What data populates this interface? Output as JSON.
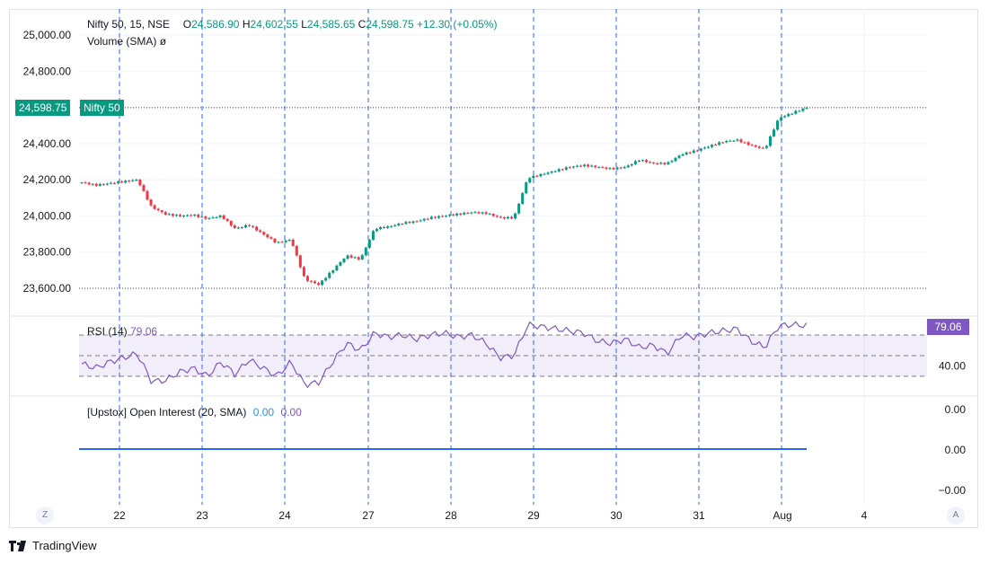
{
  "brand": {
    "name": "TradingView",
    "icon": "tradingview-logo-icon"
  },
  "price_legend": {
    "symbol": "Nifty 50, 15, NSE",
    "o_label": "O",
    "o_value": "24,586.90",
    "h_label": "H",
    "h_value": "24,602.55",
    "l_label": "L",
    "l_value": "24,585.65",
    "c_label": "C",
    "c_value": "24,598.75",
    "change": "+12.30 (+0.05%)"
  },
  "volume_legend": {
    "label": "Volume (SMA)",
    "value": "ø"
  },
  "rsi_legend": {
    "label": "RSI (14)",
    "value": "79.06"
  },
  "oi_legend": {
    "label": "[Upstox] Open Interest (20, SMA)",
    "value1": "0.00",
    "value2": "0.00"
  },
  "last_price_tag": {
    "value": "24,598.75",
    "name": "Nifty 50"
  },
  "rsi_tag": "79.06",
  "corner_left": "Z",
  "corner_right": "A",
  "colors": {
    "up": "#089981",
    "down": "#f23645",
    "rsi": "#7e57c2",
    "oi": "#2962ff",
    "grid": "#f0f3fa",
    "session": "#2962ff"
  },
  "chart_data": [
    {
      "type": "candlestick",
      "title": "Nifty 50, 15, NSE",
      "x_tick_labels": [
        "22",
        "23",
        "24",
        "27",
        "28",
        "29",
        "30",
        "31",
        "Aug",
        "4"
      ],
      "y_tick_labels": [
        "25,000.00",
        "24,800.00",
        "24,600.00",
        "24,400.00",
        "24,200.00",
        "24,000.00",
        "23,800.00",
        "23,600.00"
      ],
      "ylim": [
        23570,
        25030
      ],
      "last_price": 24598.75,
      "close_path": [
        [
          0,
          24185
        ],
        [
          1,
          24170
        ],
        [
          2,
          24180
        ],
        [
          3,
          24190
        ],
        [
          4,
          24200
        ],
        [
          5,
          24050
        ],
        [
          6,
          24010
        ],
        [
          7,
          24000
        ],
        [
          8,
          24005
        ],
        [
          9,
          23985
        ],
        [
          10,
          24000
        ],
        [
          11,
          23930
        ],
        [
          12,
          23950
        ],
        [
          13,
          23900
        ],
        [
          14,
          23850
        ],
        [
          15,
          23870
        ],
        [
          16,
          23650
        ],
        [
          17,
          23620
        ],
        [
          18,
          23700
        ],
        [
          19,
          23780
        ],
        [
          20,
          23760
        ],
        [
          21,
          23930
        ],
        [
          22,
          23940
        ],
        [
          23,
          23960
        ],
        [
          24,
          23970
        ],
        [
          25,
          23990
        ],
        [
          26,
          24000
        ],
        [
          27,
          24010
        ],
        [
          28,
          24020
        ],
        [
          29,
          24015
        ],
        [
          30,
          23990
        ],
        [
          31,
          23990
        ],
        [
          32,
          24210
        ],
        [
          33,
          24230
        ],
        [
          34,
          24250
        ],
        [
          35,
          24270
        ],
        [
          36,
          24280
        ],
        [
          37,
          24270
        ],
        [
          38,
          24260
        ],
        [
          39,
          24270
        ],
        [
          40,
          24310
        ],
        [
          41,
          24290
        ],
        [
          42,
          24290
        ],
        [
          43,
          24340
        ],
        [
          44,
          24360
        ],
        [
          45,
          24385
        ],
        [
          46,
          24410
        ],
        [
          47,
          24420
        ],
        [
          48,
          24390
        ],
        [
          49,
          24370
        ],
        [
          50,
          24540
        ],
        [
          51,
          24570
        ],
        [
          52,
          24598.75
        ]
      ]
    },
    {
      "type": "line",
      "title": "RSI (14)",
      "last_value": 79.06,
      "y_tick_labels": [
        "40.00"
      ],
      "bands": [
        30,
        50,
        70
      ],
      "x_range": [
        0,
        52
      ],
      "series": [
        {
          "values": [
            [
              0,
              42
            ],
            [
              1,
              38
            ],
            [
              2,
              44
            ],
            [
              3,
              48
            ],
            [
              4,
              52
            ],
            [
              5,
              25
            ],
            [
              6,
              26
            ],
            [
              7,
              34
            ],
            [
              8,
              38
            ],
            [
              9,
              30
            ],
            [
              10,
              44
            ],
            [
              11,
              32
            ],
            [
              12,
              46
            ],
            [
              13,
              38
            ],
            [
              14,
              30
            ],
            [
              15,
              44
            ],
            [
              16,
              22
            ],
            [
              17,
              24
            ],
            [
              18,
              44
            ],
            [
              19,
              62
            ],
            [
              20,
              55
            ],
            [
              21,
              72
            ],
            [
              22,
              68
            ],
            [
              23,
              70
            ],
            [
              24,
              66
            ],
            [
              25,
              70
            ],
            [
              26,
              72
            ],
            [
              27,
              68
            ],
            [
              28,
              70
            ],
            [
              29,
              62
            ],
            [
              30,
              48
            ],
            [
              31,
              50
            ],
            [
              32,
              80
            ],
            [
              33,
              78
            ],
            [
              34,
              76
            ],
            [
              35,
              74
            ],
            [
              36,
              72
            ],
            [
              37,
              64
            ],
            [
              38,
              62
            ],
            [
              39,
              66
            ],
            [
              40,
              58
            ],
            [
              41,
              60
            ],
            [
              42,
              52
            ],
            [
              43,
              70
            ],
            [
              44,
              68
            ],
            [
              45,
              72
            ],
            [
              46,
              74
            ],
            [
              47,
              76
            ],
            [
              48,
              64
            ],
            [
              49,
              58
            ],
            [
              50,
              79
            ],
            [
              51,
              80
            ],
            [
              52,
              79.06
            ]
          ]
        }
      ]
    },
    {
      "type": "line",
      "title": "[Upstox] Open Interest (20, SMA)",
      "y_tick_labels": [
        "0.00",
        "0.00",
        "−0.00"
      ],
      "series": [
        {
          "values": [
            [
              0,
              0
            ],
            [
              52,
              0
            ]
          ]
        }
      ]
    }
  ]
}
